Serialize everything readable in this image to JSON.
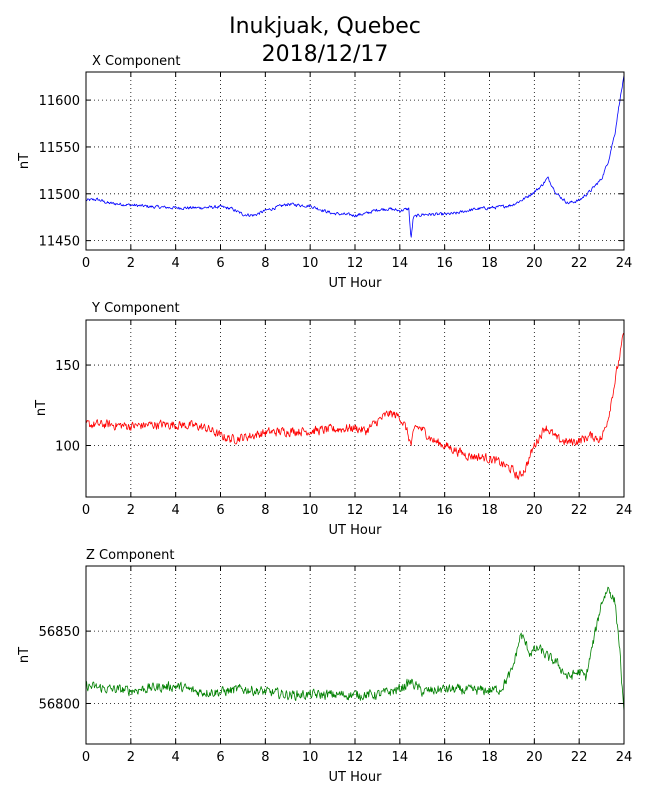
{
  "figure": {
    "title_line1": "Inukjuak, Quebec",
    "title_line2": "2018/12/17"
  },
  "chart_data": [
    {
      "type": "line",
      "subtitle": "X Component",
      "xlabel": "UT Hour",
      "ylabel": "nT",
      "xlim": [
        0,
        24
      ],
      "ylim": [
        11440,
        11630
      ],
      "xticks": [
        0,
        2,
        4,
        6,
        8,
        10,
        12,
        14,
        16,
        18,
        20,
        22,
        24
      ],
      "yticks": [
        11450,
        11500,
        11550,
        11600
      ],
      "grid": true,
      "series": [
        {
          "color": "#0000ff",
          "noise": 1.5,
          "x": [
            0,
            0.5,
            1,
            2,
            3,
            4,
            5,
            6,
            6.5,
            7,
            7.5,
            8,
            9,
            10,
            11,
            11.5,
            12,
            12.5,
            13,
            13.5,
            14,
            14.4,
            14.5,
            14.6,
            15,
            16,
            16.5,
            17,
            17.5,
            18,
            18.5,
            19,
            19.5,
            20,
            20.3,
            20.6,
            21,
            21.5,
            22,
            22.5,
            23,
            23.3,
            23.6,
            23.8,
            24
          ],
          "y": [
            11493,
            11494,
            11490,
            11488,
            11486,
            11485,
            11485,
            11486,
            11484,
            11478,
            11477,
            11482,
            11489,
            11487,
            11479,
            11478,
            11477,
            11479,
            11483,
            11484,
            11482,
            11484,
            11451,
            11475,
            11478,
            11478,
            11479,
            11482,
            11484,
            11485,
            11486,
            11488,
            11494,
            11502,
            11508,
            11517,
            11500,
            11490,
            11493,
            11503,
            11516,
            11535,
            11565,
            11598,
            11625
          ]
        }
      ]
    },
    {
      "type": "line",
      "subtitle": "Y Component",
      "xlabel": "UT Hour",
      "ylabel": "nT",
      "xlim": [
        0,
        24
      ],
      "ylim": [
        68,
        178
      ],
      "xticks": [
        0,
        2,
        4,
        6,
        8,
        10,
        12,
        14,
        16,
        18,
        20,
        22,
        24
      ],
      "yticks": [
        100,
        150
      ],
      "grid": true,
      "series": [
        {
          "color": "#ff0000",
          "noise": 2.5,
          "x": [
            0,
            1,
            2,
            3,
            4,
            5,
            5.5,
            6,
            6.5,
            7,
            8,
            9,
            10,
            11,
            12,
            12.5,
            13,
            13.5,
            14,
            14.3,
            14.5,
            14.7,
            15,
            15.5,
            16,
            16.5,
            17,
            17.5,
            18,
            18.5,
            19,
            19.3,
            19.6,
            20,
            20.5,
            21,
            21.5,
            22,
            22.5,
            23,
            23.3,
            23.6,
            24
          ],
          "y": [
            113,
            113,
            112,
            113,
            113,
            112,
            110,
            106,
            104,
            105,
            108,
            109,
            109,
            110,
            111,
            109,
            115,
            120,
            118,
            110,
            100,
            112,
            110,
            103,
            100,
            97,
            94,
            93,
            92,
            89,
            85,
            80,
            86,
            100,
            112,
            104,
            102,
            103,
            106,
            104,
            118,
            140,
            170
          ]
        }
      ]
    },
    {
      "type": "line",
      "subtitle": "Z Component",
      "xlabel": "UT Hour",
      "ylabel": "nT",
      "xlim": [
        0,
        24
      ],
      "ylim": [
        56772,
        56895
      ],
      "xticks": [
        0,
        2,
        4,
        6,
        8,
        10,
        12,
        14,
        16,
        18,
        20,
        22,
        24
      ],
      "yticks": [
        56800,
        56850
      ],
      "grid": true,
      "series": [
        {
          "color": "#008000",
          "noise": 3,
          "x": [
            0,
            1,
            2,
            3,
            4,
            5,
            6,
            7,
            8,
            9,
            10,
            11,
            12,
            13,
            14,
            14.5,
            15,
            16,
            17,
            18,
            18.5,
            19,
            19.4,
            19.8,
            20.2,
            20.6,
            21,
            21.5,
            22,
            22.3,
            22.6,
            23,
            23.3,
            23.6,
            23.8,
            24
          ],
          "y": [
            56812,
            56810,
            56809,
            56811,
            56812,
            56808,
            56808,
            56810,
            56808,
            56806,
            56806,
            56806,
            56806,
            56806,
            56810,
            56815,
            56808,
            56810,
            56809,
            56809,
            56810,
            56822,
            56848,
            56835,
            56838,
            56832,
            56828,
            56818,
            56822,
            56818,
            56840,
            56870,
            56880,
            56870,
            56840,
            56790
          ]
        }
      ]
    }
  ]
}
